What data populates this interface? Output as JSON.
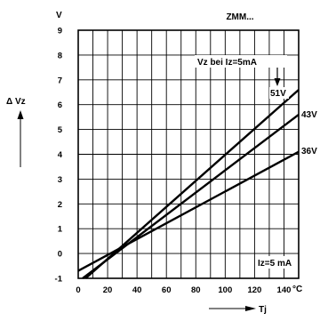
{
  "chart_data": {
    "type": "line",
    "title": "",
    "header_text": "ZMM...",
    "xlabel": "Tj",
    "x_unit": "°C",
    "ylabel": "Δ Vz",
    "y_unit": "V",
    "xlim": [
      0,
      150
    ],
    "ylim": [
      -1,
      9
    ],
    "x_ticks": [
      0,
      20,
      40,
      60,
      80,
      100,
      120,
      140
    ],
    "y_ticks": [
      -1,
      0,
      1,
      2,
      3,
      4,
      5,
      6,
      7,
      8,
      9
    ],
    "grid": true,
    "series": [
      {
        "name": "51V",
        "x": [
          5,
          150
        ],
        "y": [
          -1,
          6.6
        ]
      },
      {
        "name": "43V",
        "x": [
          3,
          150
        ],
        "y": [
          -1,
          5.6
        ]
      },
      {
        "name": "36V",
        "x": [
          0,
          150
        ],
        "y": [
          -0.7,
          4.1
        ]
      }
    ],
    "annotations": {
      "vz_condition": "Vz bei Iz=5mA",
      "iz_condition": "Iz=5 mA"
    }
  }
}
